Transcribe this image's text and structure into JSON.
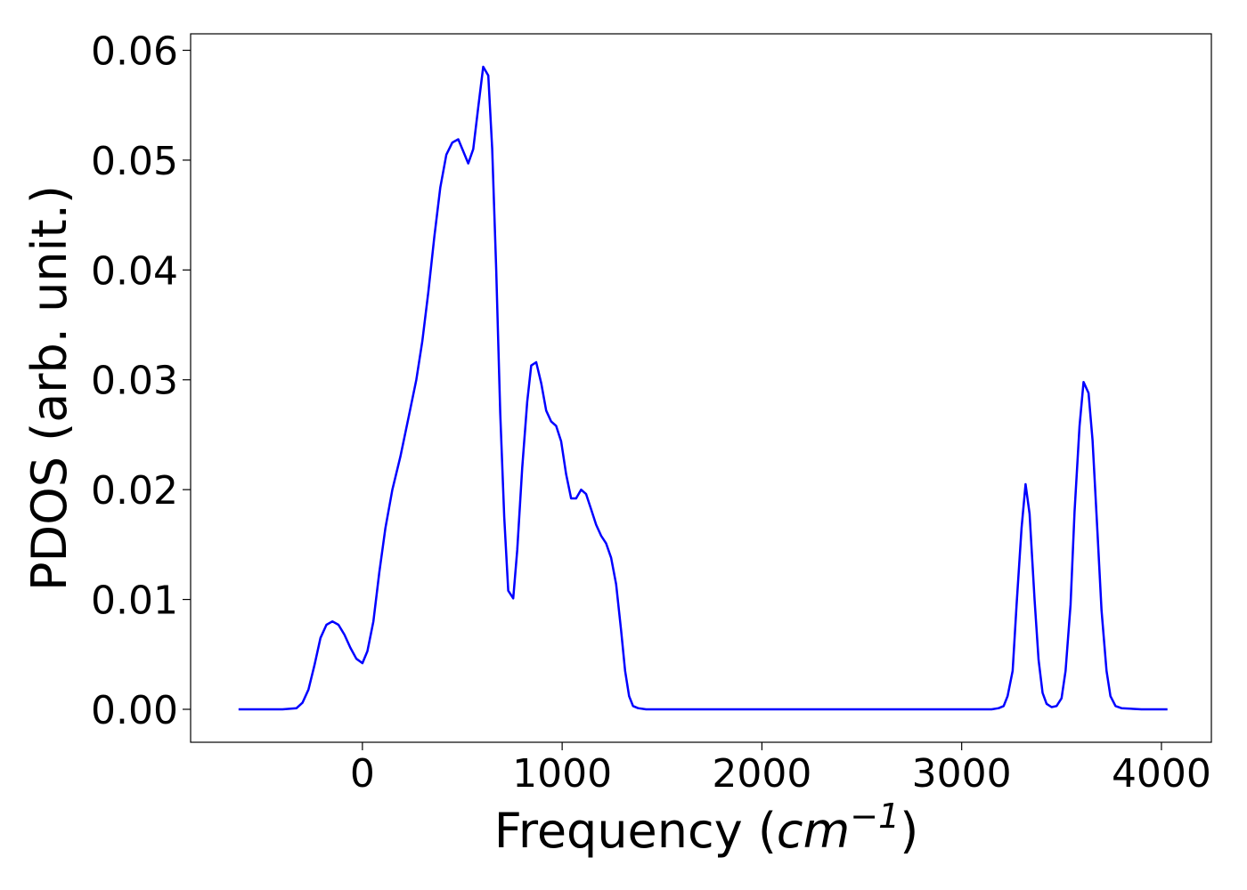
{
  "chart_data": {
    "type": "line",
    "xlabel": {
      "prefix": "Frequency (",
      "unit": "cm",
      "exponent": "−1",
      "suffix": ")"
    },
    "ylabel": "PDOS (arb. unit.)",
    "xlim": [
      -860,
      4250
    ],
    "ylim": [
      -0.003,
      0.0615
    ],
    "xticks": [
      0,
      1000,
      2000,
      3000,
      4000
    ],
    "xtick_labels": [
      "0",
      "1000",
      "2000",
      "3000",
      "4000"
    ],
    "yticks": [
      0.0,
      0.01,
      0.02,
      0.03,
      0.04,
      0.05,
      0.06
    ],
    "ytick_labels": [
      "0.00",
      "0.01",
      "0.02",
      "0.03",
      "0.04",
      "0.05",
      "0.06"
    ],
    "grid": false,
    "series": [
      {
        "color": "#0000ff",
        "points": [
          [
            -620,
            0.0
          ],
          [
            -500,
            0.0
          ],
          [
            -400,
            0.0
          ],
          [
            -330,
            0.0001
          ],
          [
            -300,
            0.0006
          ],
          [
            -270,
            0.0018
          ],
          [
            -240,
            0.004
          ],
          [
            -210,
            0.0065
          ],
          [
            -180,
            0.0077
          ],
          [
            -150,
            0.008
          ],
          [
            -120,
            0.0077
          ],
          [
            -90,
            0.0068
          ],
          [
            -60,
            0.0056
          ],
          [
            -30,
            0.0046
          ],
          [
            0,
            0.0042
          ],
          [
            25,
            0.0053
          ],
          [
            55,
            0.008
          ],
          [
            85,
            0.0125
          ],
          [
            115,
            0.0165
          ],
          [
            150,
            0.02
          ],
          [
            190,
            0.023
          ],
          [
            230,
            0.0265
          ],
          [
            270,
            0.03
          ],
          [
            300,
            0.0335
          ],
          [
            330,
            0.038
          ],
          [
            360,
            0.043
          ],
          [
            390,
            0.0475
          ],
          [
            420,
            0.0505
          ],
          [
            450,
            0.0516
          ],
          [
            480,
            0.0519
          ],
          [
            505,
            0.0508
          ],
          [
            530,
            0.0497
          ],
          [
            555,
            0.051
          ],
          [
            580,
            0.0548
          ],
          [
            605,
            0.0585
          ],
          [
            630,
            0.0577
          ],
          [
            650,
            0.051
          ],
          [
            670,
            0.04
          ],
          [
            690,
            0.027
          ],
          [
            710,
            0.0175
          ],
          [
            730,
            0.0108
          ],
          [
            755,
            0.0101
          ],
          [
            775,
            0.0145
          ],
          [
            800,
            0.022
          ],
          [
            825,
            0.028
          ],
          [
            845,
            0.0313
          ],
          [
            870,
            0.0316
          ],
          [
            895,
            0.0297
          ],
          [
            920,
            0.0272
          ],
          [
            945,
            0.0262
          ],
          [
            970,
            0.0258
          ],
          [
            995,
            0.0244
          ],
          [
            1020,
            0.0214
          ],
          [
            1045,
            0.0192
          ],
          [
            1070,
            0.0192
          ],
          [
            1095,
            0.02
          ],
          [
            1120,
            0.0196
          ],
          [
            1145,
            0.0182
          ],
          [
            1170,
            0.0168
          ],
          [
            1195,
            0.0158
          ],
          [
            1220,
            0.0151
          ],
          [
            1245,
            0.0138
          ],
          [
            1270,
            0.0114
          ],
          [
            1295,
            0.0072
          ],
          [
            1315,
            0.0035
          ],
          [
            1335,
            0.0012
          ],
          [
            1355,
            0.0003
          ],
          [
            1380,
            0.0001
          ],
          [
            1420,
            0.0
          ],
          [
            1600,
            0.0
          ],
          [
            2000,
            0.0
          ],
          [
            2500,
            0.0
          ],
          [
            2900,
            0.0
          ],
          [
            3150,
            0.0
          ],
          [
            3185,
            0.0001
          ],
          [
            3210,
            0.0003
          ],
          [
            3230,
            0.0012
          ],
          [
            3255,
            0.0035
          ],
          [
            3275,
            0.0095
          ],
          [
            3300,
            0.0165
          ],
          [
            3320,
            0.0205
          ],
          [
            3340,
            0.0178
          ],
          [
            3365,
            0.01
          ],
          [
            3385,
            0.0045
          ],
          [
            3405,
            0.0015
          ],
          [
            3425,
            0.0005
          ],
          [
            3450,
            0.0002
          ],
          [
            3475,
            0.0003
          ],
          [
            3500,
            0.001
          ],
          [
            3520,
            0.0035
          ],
          [
            3545,
            0.0095
          ],
          [
            3565,
            0.018
          ],
          [
            3590,
            0.0258
          ],
          [
            3610,
            0.0298
          ],
          [
            3635,
            0.0288
          ],
          [
            3655,
            0.0245
          ],
          [
            3680,
            0.016
          ],
          [
            3700,
            0.009
          ],
          [
            3725,
            0.0035
          ],
          [
            3745,
            0.0012
          ],
          [
            3770,
            0.0003
          ],
          [
            3800,
            0.0001
          ],
          [
            3900,
            0.0
          ],
          [
            4030,
            0.0
          ]
        ]
      }
    ]
  }
}
